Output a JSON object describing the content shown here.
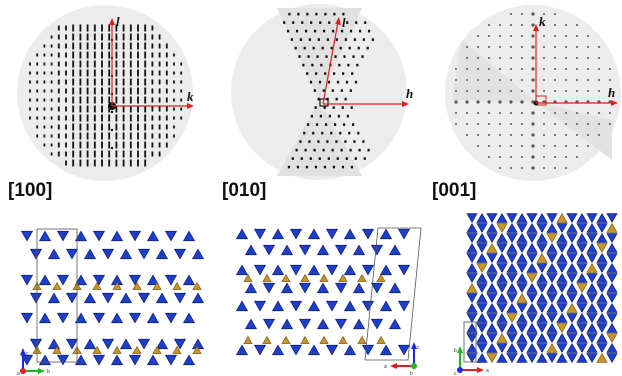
{
  "patterns": [
    {
      "zone": "[100]",
      "axis_h": "k",
      "axis_v": "l"
    },
    {
      "zone": "[010]",
      "axis_h": "h",
      "axis_v": "l"
    },
    {
      "zone": "[001]",
      "axis_h": "h",
      "axis_v": "k"
    }
  ],
  "structures": [
    {
      "triad": [
        "c",
        "b",
        "a"
      ]
    },
    {
      "triad": [
        "c",
        "a",
        "b"
      ]
    },
    {
      "triad": [
        "b",
        "a",
        "c"
      ]
    }
  ],
  "colors": {
    "disc": "#ececec",
    "spot": "#111111",
    "axis_red": "#e02020",
    "tetra_blue": "#1f3fc9",
    "tetra_dark": "#0d1f7a",
    "tetra_gold": "#c9952b",
    "tetra_gold_dark": "#7a5a18",
    "axis_green": "#19b81d",
    "axis_blue": "#1d2be0"
  },
  "icons": {
    "zone_axis_arrows": "arrow-icon",
    "triad": "axis-triad-icon"
  }
}
